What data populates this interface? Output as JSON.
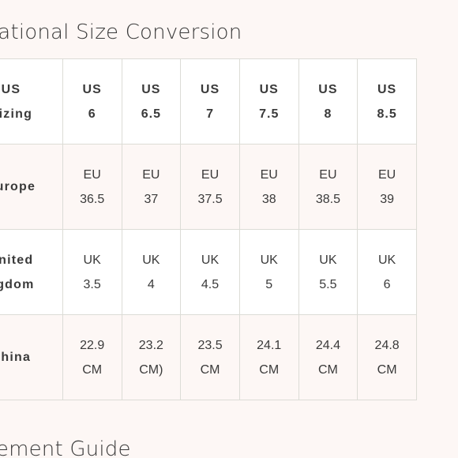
{
  "header": {
    "title": "ernational Size Conversion"
  },
  "table": {
    "rows": [
      {
        "label": [
          "US",
          "Sizing"
        ],
        "cells": [
          [
            "US",
            "6"
          ],
          [
            "US",
            "6.5"
          ],
          [
            "US",
            "7"
          ],
          [
            "US",
            "7.5"
          ],
          [
            "US",
            "8"
          ],
          [
            "US",
            "8.5"
          ]
        ]
      },
      {
        "label": [
          "Europe"
        ],
        "cells": [
          [
            "EU",
            "36.5"
          ],
          [
            "EU",
            "37"
          ],
          [
            "EU",
            "37.5"
          ],
          [
            "EU",
            "38"
          ],
          [
            "EU",
            "38.5"
          ],
          [
            "EU",
            "39"
          ]
        ]
      },
      {
        "label": [
          "United",
          "ngdom"
        ],
        "cells": [
          [
            "UK",
            "3.5"
          ],
          [
            "UK",
            "4"
          ],
          [
            "UK",
            "4.5"
          ],
          [
            "UK",
            "5"
          ],
          [
            "UK",
            "5.5"
          ],
          [
            "UK",
            "6"
          ]
        ]
      },
      {
        "label": [
          "China"
        ],
        "cells": [
          [
            "22.9",
            "CM"
          ],
          [
            "23.2",
            "CM)"
          ],
          [
            "23.5",
            "CM"
          ],
          [
            "24.1",
            "CM"
          ],
          [
            "24.4",
            "CM"
          ],
          [
            "24.8",
            "CM"
          ]
        ]
      }
    ]
  },
  "footer": {
    "title": "asurement Guide"
  }
}
